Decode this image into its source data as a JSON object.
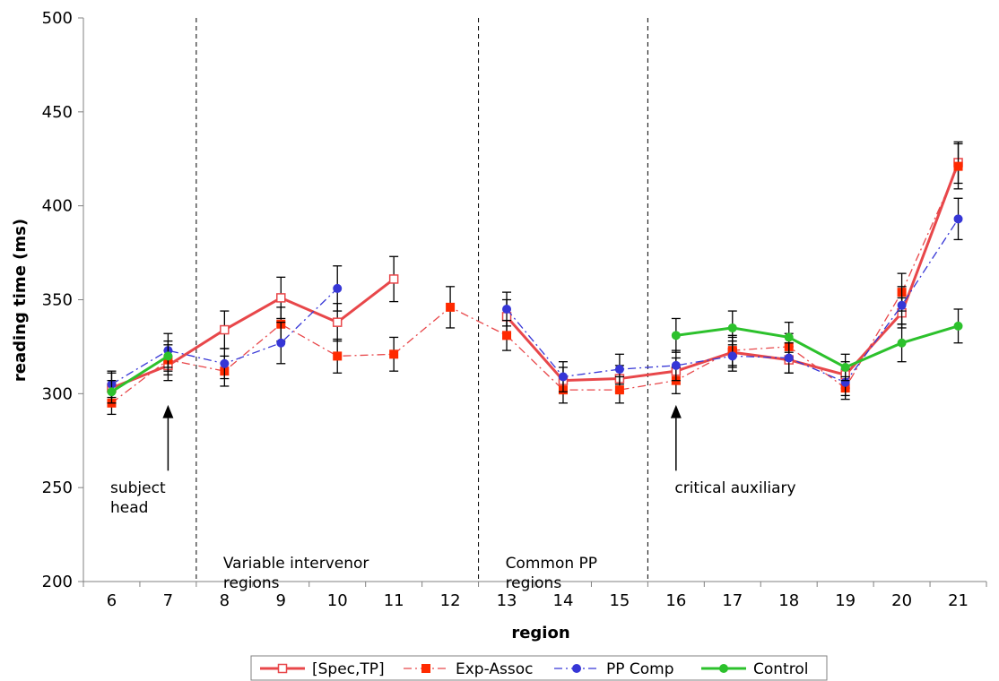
{
  "chart_data": {
    "type": "line",
    "title": "",
    "xlabel": "region",
    "ylabel": "reading time (ms)",
    "ylim": [
      200,
      500
    ],
    "yticks": [
      200,
      250,
      300,
      350,
      400,
      450,
      500
    ],
    "categories": [
      "6",
      "7",
      "8",
      "9",
      "10",
      "11",
      "12",
      "13",
      "14",
      "15",
      "16",
      "17",
      "18",
      "19",
      "20",
      "21"
    ],
    "grid": false,
    "legend_position": "bottom",
    "series": [
      {
        "name": "[Spec,TP]",
        "color": "#e8474a",
        "style": "solid",
        "marker": "open-square",
        "values": [
          303,
          315,
          334,
          351,
          338,
          361,
          null,
          341,
          307,
          308,
          312,
          322,
          318,
          310,
          343,
          423
        ],
        "errors": [
          8,
          8,
          10,
          11,
          10,
          12,
          null,
          9,
          7,
          7,
          7,
          8,
          7,
          7,
          8,
          11
        ]
      },
      {
        "name": "Exp-Assoc",
        "color": "#e8474a",
        "style": "dashdot",
        "marker": "filled-square",
        "values": [
          295,
          318,
          312,
          337,
          320,
          321,
          346,
          331,
          302,
          302,
          307,
          323,
          325,
          303,
          354,
          421
        ],
        "errors": [
          6,
          8,
          8,
          9,
          9,
          9,
          11,
          8,
          7,
          7,
          7,
          8,
          7,
          6,
          10,
          12
        ]
      },
      {
        "name": "PP Comp",
        "color": "#3636d6",
        "style": "dashdot",
        "marker": "circle",
        "values": [
          305,
          323,
          316,
          327,
          356,
          null,
          null,
          345,
          309,
          313,
          315,
          320,
          319,
          306,
          347,
          393
        ],
        "errors": [
          7,
          9,
          8,
          11,
          12,
          null,
          null,
          9,
          8,
          8,
          8,
          8,
          8,
          7,
          10,
          11
        ]
      },
      {
        "name": "Control",
        "color": "#2cc12c",
        "style": "solid",
        "marker": "circle",
        "values": [
          301,
          320,
          null,
          null,
          null,
          null,
          null,
          null,
          null,
          null,
          331,
          335,
          330,
          314,
          327,
          336
        ],
        "errors": [
          6,
          8,
          null,
          null,
          null,
          null,
          null,
          null,
          null,
          null,
          9,
          9,
          8,
          7,
          10,
          9
        ]
      }
    ],
    "dividers": [
      {
        "after_category": "7"
      },
      {
        "after_category": "12"
      },
      {
        "after_category": "15"
      }
    ],
    "annotations": [
      {
        "id": "subject-head",
        "lines": [
          "subject",
          "head"
        ],
        "category": "6",
        "arrow_at": "7"
      },
      {
        "id": "variable-intervenor",
        "lines": [
          "Variable intervenor",
          "regions"
        ],
        "category": "8"
      },
      {
        "id": "common-pp",
        "lines": [
          "Common PP",
          "regions"
        ],
        "category": "13"
      },
      {
        "id": "critical-aux",
        "lines": [
          "critical auxiliary"
        ],
        "category": "16",
        "arrow_at": "16"
      }
    ]
  }
}
